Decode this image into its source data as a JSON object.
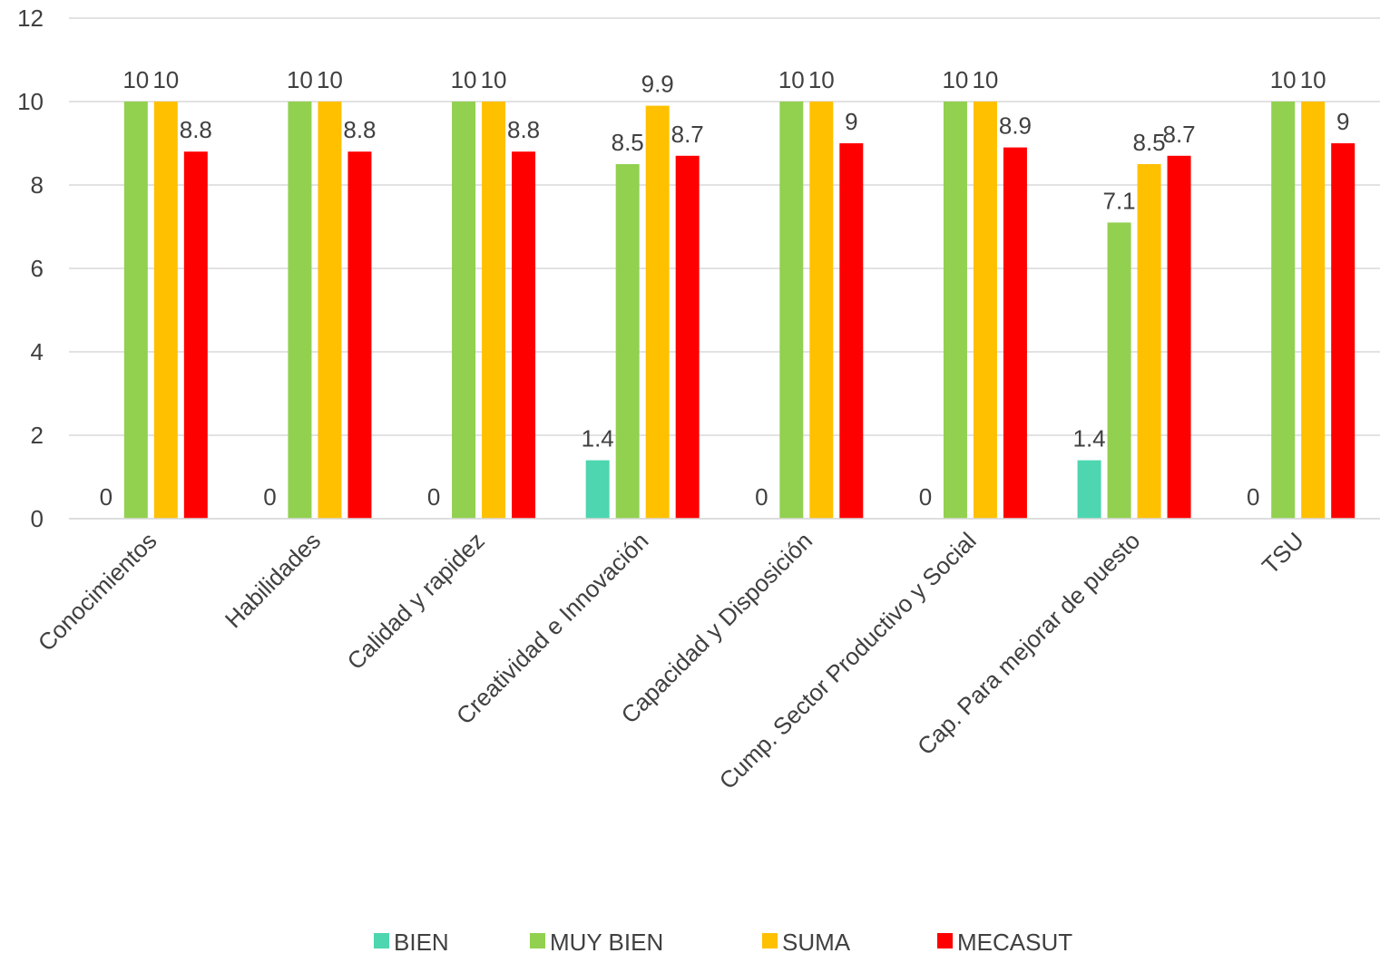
{
  "chart_data": {
    "type": "bar",
    "title": "",
    "xlabel": "",
    "ylabel": "",
    "ylim": [
      0,
      12
    ],
    "yticks": [
      0,
      2,
      4,
      6,
      8,
      10,
      12
    ],
    "grid": true,
    "legend_position": "bottom",
    "categories": [
      "Conocimientos",
      "Habilidades",
      "Calidad y rapidez",
      "Creatividad e Innovación",
      "Capacidad y Disposición",
      "Cump. Sector Productivo y Social",
      "Cap. Para mejorar de puesto",
      "TSU"
    ],
    "series": [
      {
        "name": "BIEN",
        "color": "#4DD6B0",
        "values": [
          0,
          0,
          0,
          1.4,
          0,
          0,
          1.4,
          0
        ]
      },
      {
        "name": "MUY BIEN",
        "color": "#92D050",
        "values": [
          10,
          10,
          10,
          8.5,
          10,
          10,
          7.1,
          10
        ]
      },
      {
        "name": "SUMA",
        "color": "#FFC000",
        "values": [
          10,
          10,
          10,
          9.9,
          10,
          10,
          8.5,
          10
        ]
      },
      {
        "name": "MECASUT",
        "color": "#FF0000",
        "values": [
          8.8,
          8.8,
          8.8,
          8.7,
          9,
          8.9,
          8.7,
          9
        ]
      }
    ]
  }
}
